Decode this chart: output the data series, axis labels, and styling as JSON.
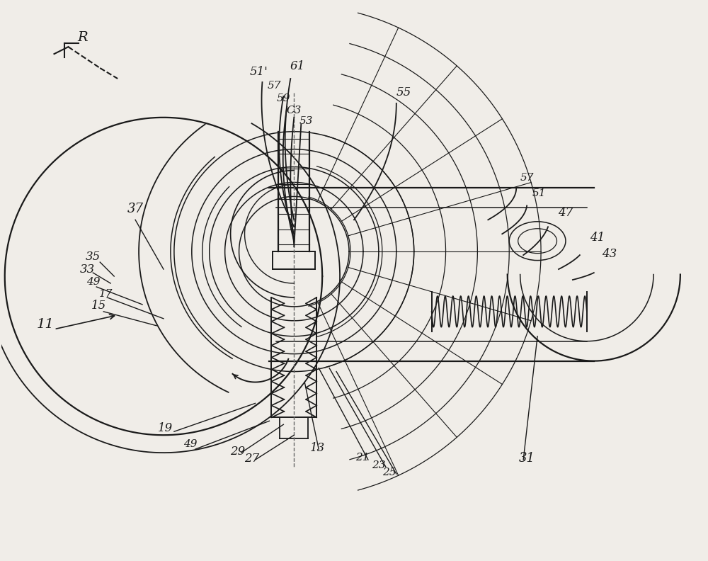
{
  "bg_color": "#f0ede8",
  "line_color": "#1a1a1a",
  "fig_width": 10.0,
  "fig_height": 7.92,
  "note_fontsize": 12
}
